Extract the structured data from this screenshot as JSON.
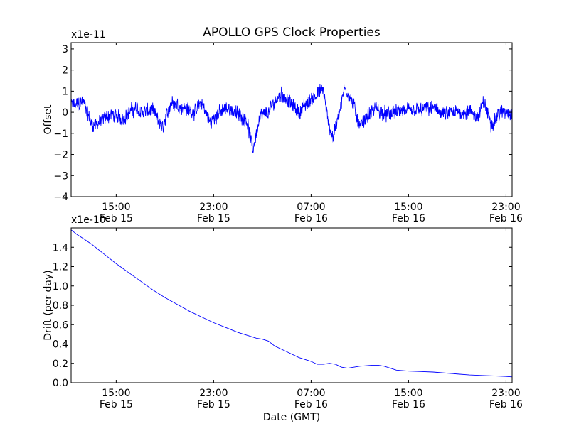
{
  "chart_data": [
    {
      "type": "line",
      "title": "APOLLO GPS Clock Properties",
      "ylabel": "Offset",
      "xlabel": "",
      "y_scale_label": "x1e-11",
      "ylim": [
        -4,
        3.3
      ],
      "xlim": [
        11.3,
        47.5
      ],
      "yticks": [
        3,
        2,
        1,
        0,
        -1,
        -2,
        -3,
        -4
      ],
      "xticks": [
        {
          "x": 15,
          "time": "15:00",
          "date": "Feb 15"
        },
        {
          "x": 23,
          "time": "23:00",
          "date": "Feb 15"
        },
        {
          "x": 31,
          "time": "07:00",
          "date": "Feb 16"
        },
        {
          "x": 39,
          "time": "15:00",
          "date": "Feb 16"
        },
        {
          "x": 47,
          "time": "23:00",
          "date": "Feb 16"
        }
      ],
      "series": [
        {
          "name": "offset",
          "color": "#0000ff",
          "noise_amplitude": 0.42,
          "x": [
            11.3,
            12.3,
            13.0,
            13.6,
            14.5,
            15.5,
            16.5,
            17.2,
            18.0,
            18.8,
            19.5,
            20.5,
            21.5,
            22.0,
            22.7,
            23.5,
            24.3,
            25.0,
            25.7,
            26.2,
            26.8,
            27.5,
            28.0,
            28.6,
            29.3,
            30.0,
            30.8,
            31.5,
            32.0,
            32.4,
            32.8,
            33.3,
            33.8,
            34.5,
            35.0,
            35.6,
            36.3,
            37.0,
            38.0,
            39.0,
            40.0,
            41.0,
            42.0,
            43.0,
            44.0,
            44.7,
            45.2,
            45.8,
            46.5,
            47.5
          ],
          "y": [
            0.3,
            0.5,
            -0.6,
            -0.5,
            -0.1,
            -0.3,
            0.2,
            0.0,
            0.1,
            -0.8,
            0.5,
            0.2,
            0.0,
            0.5,
            -0.5,
            0.0,
            0.2,
            -0.1,
            -0.3,
            -1.8,
            -0.2,
            0.0,
            0.5,
            0.9,
            0.4,
            0.0,
            0.5,
            0.9,
            1.1,
            -0.5,
            -1.2,
            0.0,
            1.2,
            0.3,
            -0.7,
            -0.2,
            0.2,
            -0.1,
            0.0,
            0.1,
            0.1,
            0.2,
            -0.1,
            0.0,
            0.0,
            -0.2,
            0.5,
            -0.6,
            0.0,
            0.0
          ]
        }
      ]
    },
    {
      "type": "line",
      "title": "",
      "ylabel": "Drift (per day)",
      "xlabel": "Date (GMT)",
      "y_scale_label": "x1e-10",
      "ylim": [
        0.0,
        1.6
      ],
      "xlim": [
        11.3,
        47.5
      ],
      "yticks": [
        1.4,
        1.2,
        1.0,
        0.8,
        0.6,
        0.4,
        0.2,
        0.0
      ],
      "ytick_labels": [
        "1.4",
        "1.2",
        "1.0",
        "0.8",
        "0.6",
        "0.4",
        "0.2",
        "0.0"
      ],
      "xticks": [
        {
          "x": 15,
          "time": "15:00",
          "date": "Feb 15"
        },
        {
          "x": 23,
          "time": "23:00",
          "date": "Feb 15"
        },
        {
          "x": 31,
          "time": "07:00",
          "date": "Feb 16"
        },
        {
          "x": 39,
          "time": "15:00",
          "date": "Feb 16"
        },
        {
          "x": 47,
          "time": "23:00",
          "date": "Feb 16"
        }
      ],
      "series": [
        {
          "name": "drift",
          "color": "#0000ff",
          "x": [
            11.3,
            11.8,
            12.3,
            13.0,
            14.0,
            15.0,
            16.0,
            17.0,
            18.0,
            19.0,
            20.0,
            21.0,
            22.0,
            23.0,
            24.0,
            25.0,
            26.0,
            26.5,
            27.0,
            27.5,
            28.0,
            29.0,
            30.0,
            30.5,
            31.0,
            31.5,
            32.0,
            32.5,
            33.0,
            33.5,
            34.0,
            35.0,
            36.0,
            36.5,
            37.0,
            38.0,
            39.0,
            40.0,
            41.0,
            42.0,
            43.0,
            44.0,
            45.0,
            46.0,
            47.0,
            47.5
          ],
          "y": [
            1.58,
            1.53,
            1.49,
            1.43,
            1.33,
            1.23,
            1.14,
            1.05,
            0.96,
            0.88,
            0.81,
            0.74,
            0.68,
            0.62,
            0.57,
            0.52,
            0.48,
            0.46,
            0.45,
            0.43,
            0.38,
            0.32,
            0.26,
            0.24,
            0.22,
            0.19,
            0.19,
            0.2,
            0.19,
            0.16,
            0.15,
            0.17,
            0.18,
            0.18,
            0.17,
            0.13,
            0.12,
            0.115,
            0.11,
            0.1,
            0.09,
            0.08,
            0.075,
            0.07,
            0.065,
            0.06
          ]
        }
      ]
    }
  ]
}
